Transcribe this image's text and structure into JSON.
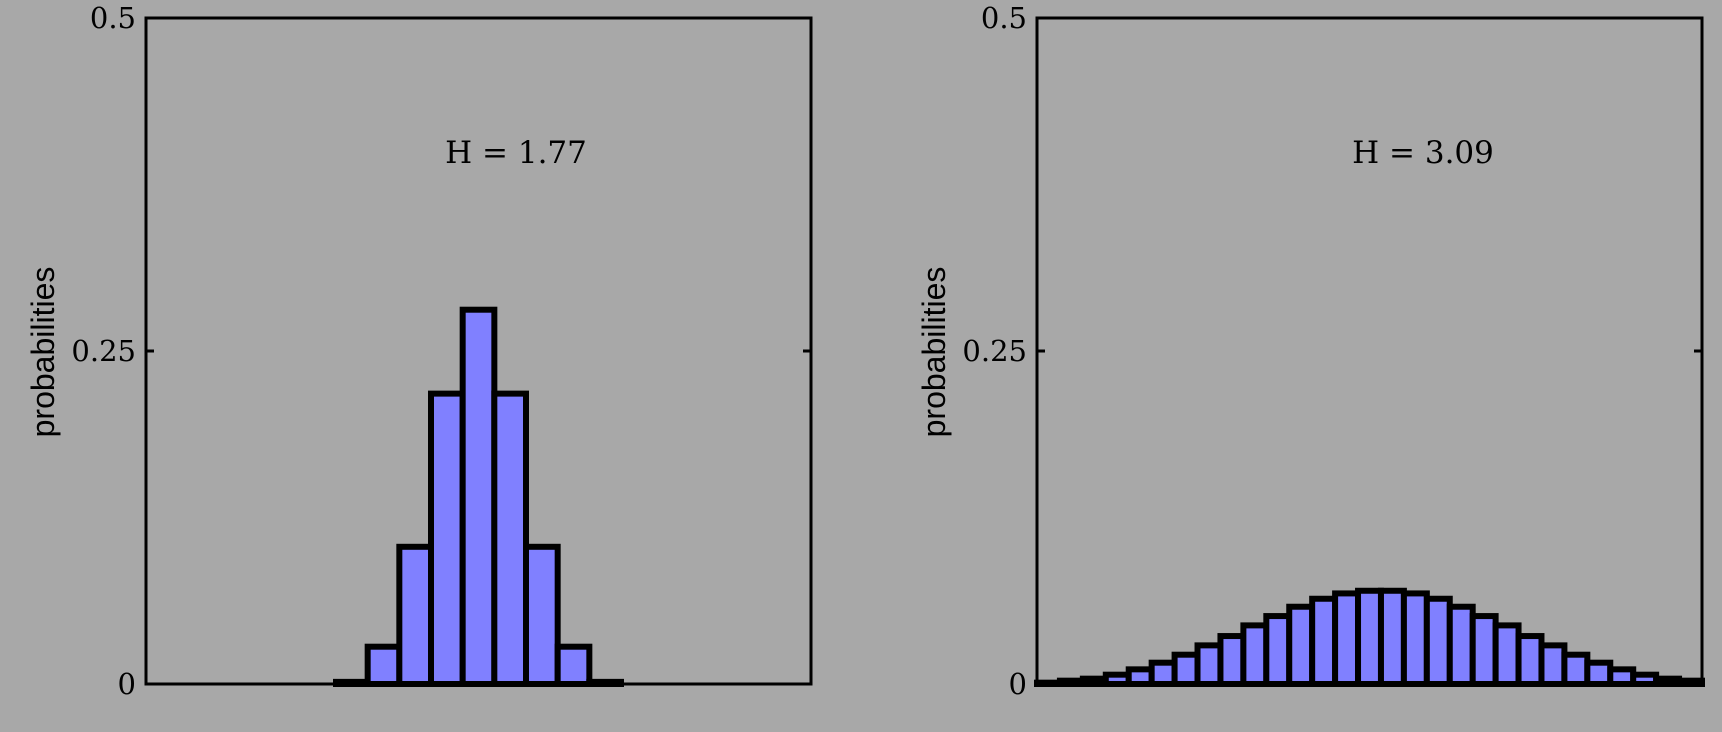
{
  "chart_data": [
    {
      "type": "bar",
      "ylabel": "probabilities",
      "annotation": "H = 1.77",
      "ylim": [
        0,
        0.5
      ],
      "yticks": [
        0,
        0.25,
        0.5
      ],
      "ytick_labels": [
        "0",
        "0.25",
        "0.5"
      ],
      "grid": false,
      "x": [
        -10,
        -9,
        -8,
        -7,
        -6,
        -5,
        -4,
        -3,
        -2,
        -1,
        0,
        1,
        2,
        3,
        4,
        5,
        6,
        7,
        8,
        9,
        10
      ],
      "values": [
        0,
        0,
        0,
        0,
        0,
        3e-05,
        0.0016,
        0.028,
        0.103,
        0.218,
        0.281,
        0.218,
        0.103,
        0.028,
        0.0016,
        3e-05,
        0,
        0,
        0,
        0,
        0
      ],
      "bar_color": "#8080ff",
      "background": "#a8a8a8"
    },
    {
      "type": "bar",
      "ylabel": "probabilities",
      "annotation": "H = 3.09",
      "ylim": [
        0,
        0.5
      ],
      "yticks": [
        0,
        0.25,
        0.5
      ],
      "ytick_labels": [
        "0",
        "0.25",
        "0.5"
      ],
      "grid": false,
      "x": [
        -14,
        -13,
        -12,
        -11,
        -10,
        -9,
        -8,
        -7,
        -6,
        -5,
        -4,
        -3,
        -2,
        -1,
        0,
        1,
        2,
        3,
        4,
        5,
        6,
        7,
        8,
        9,
        10,
        11,
        12,
        13,
        14
      ],
      "values": [
        0.001,
        0.0025,
        0.004,
        0.007,
        0.011,
        0.016,
        0.022,
        0.029,
        0.036,
        0.044,
        0.051,
        0.058,
        0.064,
        0.068,
        0.07,
        0.07,
        0.068,
        0.064,
        0.058,
        0.051,
        0.044,
        0.036,
        0.029,
        0.022,
        0.016,
        0.011,
        0.007,
        0.004,
        0.0025
      ],
      "bar_color": "#8080ff",
      "background": "#a8a8a8"
    }
  ]
}
